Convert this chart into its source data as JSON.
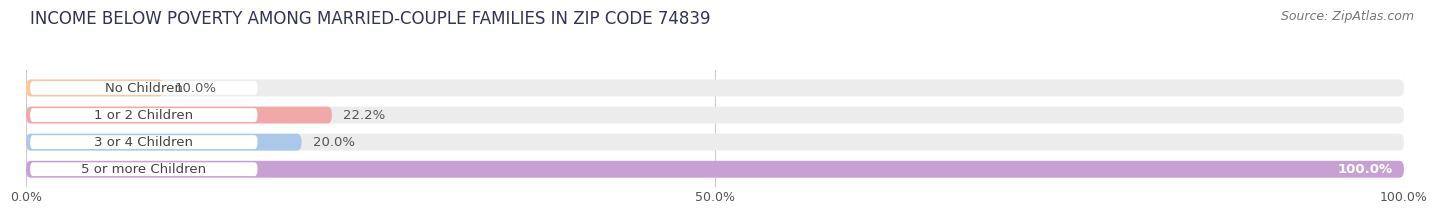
{
  "title": "INCOME BELOW POVERTY AMONG MARRIED-COUPLE FAMILIES IN ZIP CODE 74839",
  "source": "Source: ZipAtlas.com",
  "categories": [
    "No Children",
    "1 or 2 Children",
    "3 or 4 Children",
    "5 or more Children"
  ],
  "values": [
    10.0,
    22.2,
    20.0,
    100.0
  ],
  "bar_colors": [
    "#f7c99c",
    "#f0a8a8",
    "#aac8ea",
    "#c8a0d4"
  ],
  "bar_edge_colors": [
    "#e8a060",
    "#d87878",
    "#78a8d8",
    "#a870c0"
  ],
  "label_pill_colors": [
    "#f7c99c",
    "#f0a8a8",
    "#aac8ea",
    "#c8a0d4"
  ],
  "x_max": 100.0,
  "x_ticks": [
    0.0,
    50.0,
    100.0
  ],
  "x_tick_labels": [
    "0.0%",
    "50.0%",
    "100.0%"
  ],
  "background_color": "#ffffff",
  "bar_bg_color": "#ececec",
  "title_fontsize": 12,
  "source_fontsize": 9,
  "label_fontsize": 9.5,
  "value_fontsize": 9.5,
  "tick_fontsize": 9
}
